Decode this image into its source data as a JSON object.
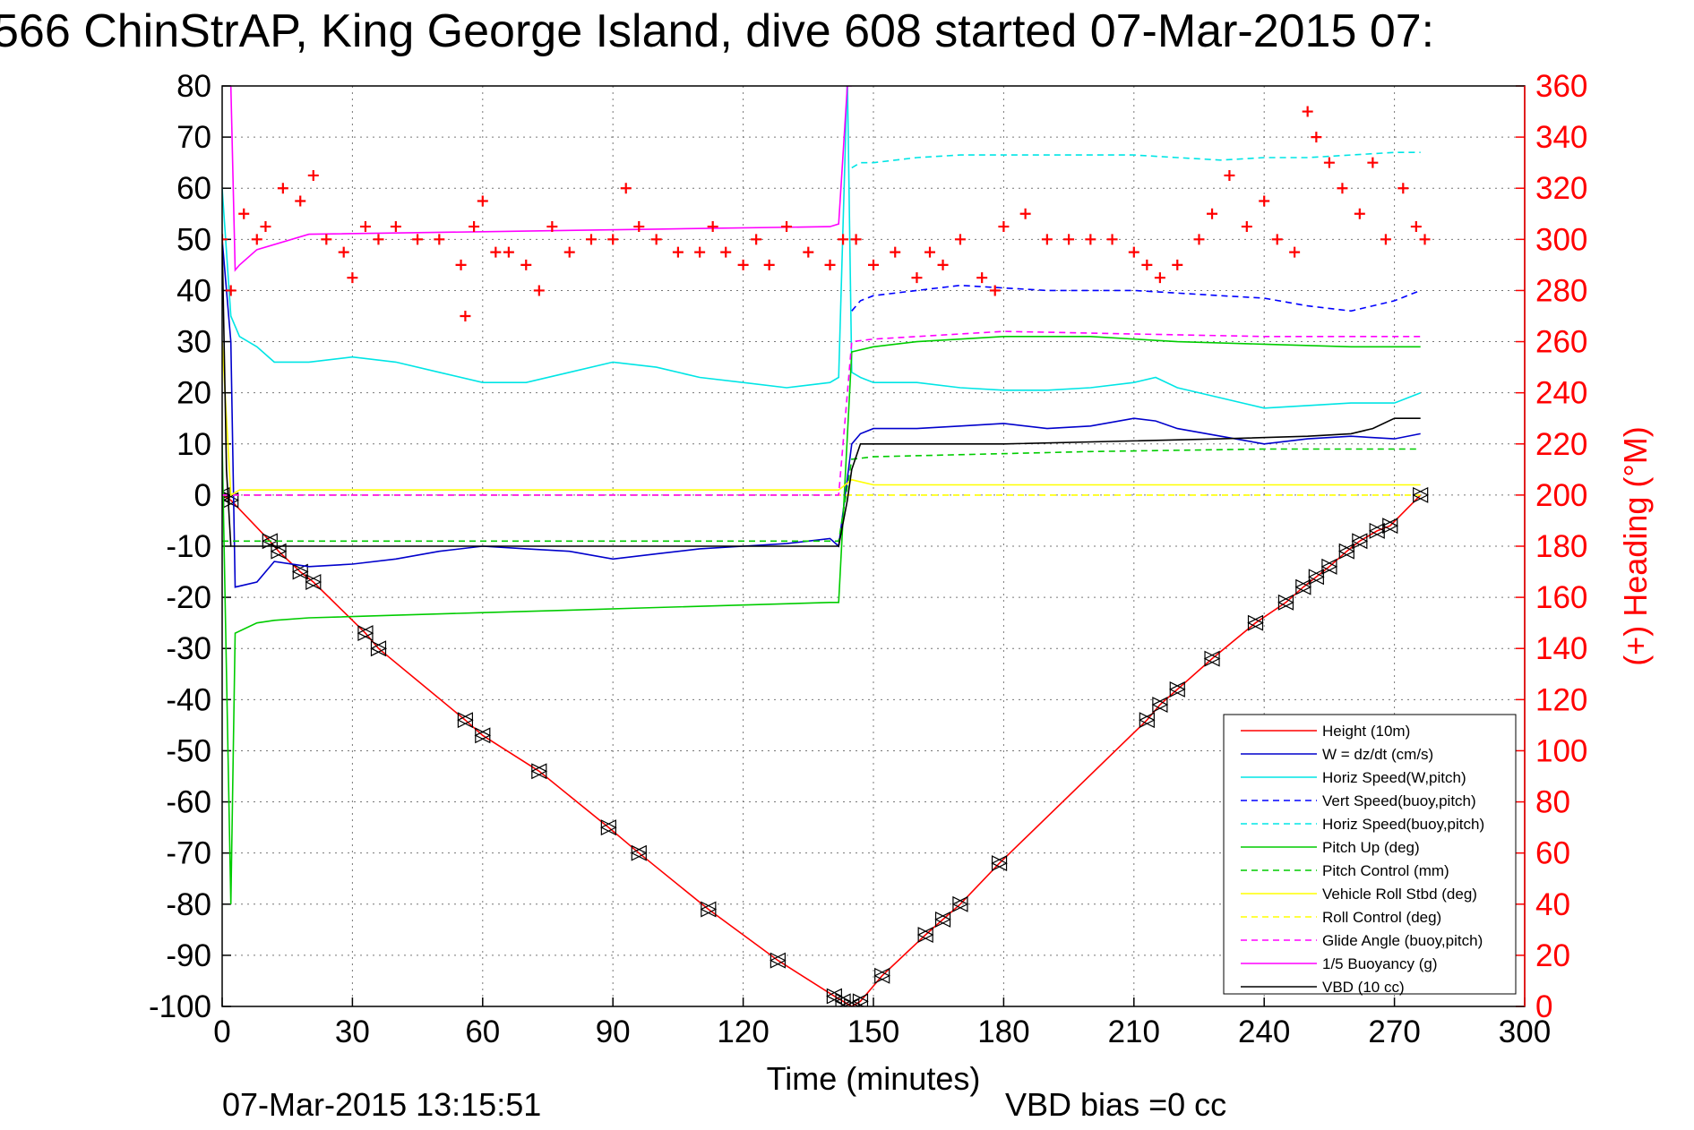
{
  "title": "566 ChinStrAP, King George Island, dive 608 started 07-Mar-2015 07:",
  "footer_date": "07-Mar-2015 13:15:51",
  "footer_vbd": "VBD bias =0 cc",
  "colors": {
    "red": "#ff0000",
    "blue": "#0000cc",
    "cyan": "#00e5e5",
    "green": "#00cc00",
    "yellow": "#ffff00",
    "magenta": "#ff00ff",
    "black": "#000000"
  },
  "chart_data": {
    "type": "line",
    "xlabel": "Time (minutes)",
    "ylabel": "",
    "y2label": "(+) Heading (°M)",
    "xlim": [
      0,
      300
    ],
    "ylim": [
      -100,
      80
    ],
    "y2lim": [
      0,
      360
    ],
    "xticks": [
      0,
      30,
      60,
      90,
      120,
      150,
      180,
      210,
      240,
      270,
      300
    ],
    "yticks": [
      80,
      70,
      60,
      50,
      40,
      30,
      20,
      10,
      0,
      -10,
      -20,
      -30,
      -40,
      -50,
      -60,
      -70,
      -80,
      -90,
      -100
    ],
    "y2ticks": [
      360,
      340,
      320,
      300,
      280,
      260,
      240,
      220,
      200,
      180,
      160,
      140,
      120,
      100,
      80,
      60,
      40,
      20,
      0
    ],
    "grid": true,
    "legend_position": "lower-right",
    "series": [
      {
        "name": "Height (10m)",
        "color": "#ff0000",
        "dash": "solid",
        "marker": "triangle",
        "x": [
          0,
          2,
          11,
          13,
          18,
          21,
          33,
          36,
          56,
          60,
          73,
          89,
          96,
          112,
          128,
          141,
          143,
          145,
          147,
          152,
          162,
          166,
          170,
          179,
          213,
          216,
          220,
          228,
          238,
          245,
          249,
          252,
          255,
          259,
          262,
          266,
          269,
          276
        ],
        "y": [
          0,
          -1,
          -9,
          -11,
          -15,
          -17,
          -27,
          -30,
          -44,
          -47,
          -54,
          -65,
          -70,
          -81,
          -91,
          -98,
          -99,
          -100,
          -99,
          -94,
          -86,
          -83,
          -80,
          -72,
          -44,
          -41,
          -38,
          -32,
          -25,
          -21,
          -18,
          -16,
          -14,
          -11,
          -9,
          -7,
          -6,
          0
        ]
      },
      {
        "name": "W = dz/dt (cm/s)",
        "color": "#0000cc",
        "dash": "solid",
        "marker": "none",
        "x": [
          0,
          2,
          3,
          8,
          12,
          20,
          30,
          40,
          50,
          60,
          70,
          80,
          90,
          100,
          110,
          120,
          130,
          140,
          142,
          145,
          147,
          150,
          160,
          170,
          180,
          190,
          200,
          210,
          215,
          220,
          230,
          240,
          250,
          260,
          270,
          276
        ],
        "y": [
          50,
          30,
          -18,
          -17,
          -13,
          -14,
          -13.5,
          -12.5,
          -11,
          -10,
          -10.5,
          -11,
          -12.5,
          -11.5,
          -10.5,
          -10,
          -9.5,
          -8.5,
          -10,
          10,
          12,
          13,
          13,
          13.5,
          14,
          13,
          13.5,
          15,
          14.5,
          13,
          11.5,
          10,
          11,
          11.5,
          11,
          12
        ]
      },
      {
        "name": "Horiz Speed(W,pitch)",
        "color": "#00e5e5",
        "dash": "solid",
        "marker": "none",
        "x": [
          0,
          2,
          4,
          8,
          12,
          20,
          30,
          40,
          50,
          60,
          70,
          80,
          90,
          100,
          110,
          120,
          130,
          140,
          142,
          144,
          145,
          147,
          150,
          160,
          170,
          180,
          190,
          200,
          210,
          215,
          220,
          230,
          240,
          250,
          260,
          270,
          276
        ],
        "y": [
          60,
          35,
          31,
          29,
          26,
          26,
          27,
          26,
          24,
          22,
          22,
          24,
          26,
          25,
          23,
          22,
          21,
          22,
          23,
          82,
          24,
          23,
          22,
          22,
          21,
          20.5,
          20.5,
          21,
          22,
          23,
          21,
          19,
          17,
          17.5,
          18,
          18,
          20
        ]
      },
      {
        "name": "Vert Speed(buoy,pitch)",
        "color": "#0000ff",
        "dash": "dashed",
        "marker": "none",
        "x": [
          145,
          147,
          150,
          160,
          170,
          180,
          190,
          200,
          210,
          220,
          230,
          240,
          250,
          260,
          270,
          276
        ],
        "y": [
          36,
          38,
          39,
          40,
          41,
          40.5,
          40,
          40,
          40,
          39.5,
          39,
          38.5,
          37,
          36,
          38,
          40
        ]
      },
      {
        "name": "Horiz Speed(buoy,pitch)",
        "color": "#00e5e5",
        "dash": "dashed",
        "marker": "none",
        "x": [
          145,
          147,
          150,
          160,
          170,
          180,
          190,
          200,
          210,
          220,
          230,
          240,
          250,
          260,
          270,
          276
        ],
        "y": [
          64,
          65,
          65,
          66,
          66.5,
          66.5,
          66.5,
          66.5,
          66.5,
          66,
          65.5,
          66,
          66,
          66.5,
          67,
          67
        ]
      },
      {
        "name": "Pitch Up (deg)",
        "color": "#00cc00",
        "dash": "solid",
        "marker": "none",
        "x": [
          0,
          2,
          3,
          8,
          12,
          20,
          40,
          60,
          80,
          100,
          120,
          140,
          142,
          145,
          150,
          160,
          180,
          200,
          220,
          240,
          260,
          276
        ],
        "y": [
          10,
          -80,
          -27,
          -25,
          -24.5,
          -24,
          -23.5,
          -23,
          -22.5,
          -22,
          -21.5,
          -21,
          -21,
          28,
          29,
          30,
          31,
          31,
          30,
          29.5,
          29,
          29
        ]
      },
      {
        "name": "Pitch Control (mm)",
        "color": "#00cc00",
        "dash": "dashed",
        "marker": "none",
        "x": [
          0,
          3,
          20,
          60,
          100,
          140,
          142,
          145,
          150,
          200,
          240,
          276
        ],
        "y": [
          -9,
          -9,
          -9,
          -9,
          -9,
          -9,
          -9,
          7,
          7.5,
          8.5,
          9,
          9
        ]
      },
      {
        "name": "Vehicle Roll Stbd (deg)",
        "color": "#ffff00",
        "dash": "solid",
        "marker": "none",
        "x": [
          0,
          2,
          4,
          10,
          20,
          40,
          60,
          80,
          100,
          120,
          140,
          142,
          145,
          150,
          180,
          210,
          240,
          260,
          276
        ],
        "y": [
          30,
          0,
          1,
          1,
          1,
          1,
          1,
          1,
          1,
          1,
          1,
          1,
          3,
          2,
          2,
          2,
          2,
          2,
          2
        ]
      },
      {
        "name": "Roll Control (deg)",
        "color": "#ffff00",
        "dash": "dashed",
        "marker": "none",
        "x": [
          0,
          3,
          40,
          80,
          120,
          140,
          145,
          180,
          220,
          240,
          276
        ],
        "y": [
          0,
          0,
          0,
          0,
          0,
          0,
          0,
          0,
          0,
          0,
          0
        ]
      },
      {
        "name": "Glide Angle (buoy,pitch)",
        "color": "#ff00ff",
        "dash": "dashed",
        "marker": "none",
        "x": [
          0,
          3,
          40,
          80,
          120,
          140,
          142,
          145,
          150,
          180,
          210,
          240,
          260,
          276
        ],
        "y": [
          0,
          0,
          0,
          0,
          0,
          0,
          0,
          30,
          30.5,
          32,
          31.5,
          31,
          31,
          31
        ]
      },
      {
        "name": "1/5 Buoyancy (g)",
        "color": "#ff00ff",
        "dash": "solid",
        "marker": "none",
        "x": [
          2,
          3,
          4,
          8,
          20,
          60,
          100,
          140,
          142,
          144,
          145
        ],
        "y": [
          80,
          44,
          45,
          48,
          51,
          51.5,
          52,
          52.5,
          53,
          80,
          80
        ]
      },
      {
        "name": "VBD (10 cc)",
        "color": "#000000",
        "dash": "solid",
        "marker": "none",
        "x": [
          0,
          1,
          2,
          3,
          40,
          80,
          120,
          142,
          144,
          145,
          147,
          180,
          230,
          250,
          260,
          265,
          270,
          276
        ],
        "y": [
          50,
          5,
          -10,
          -10,
          -10,
          -10,
          -10,
          -10,
          -1,
          5,
          10,
          10,
          11,
          11.5,
          12,
          13,
          15,
          15
        ]
      },
      {
        "name": "",
        "axis": "right",
        "color": "#ff0000",
        "dash": "none",
        "marker": "plus",
        "x": [
          0,
          2,
          5,
          8,
          10,
          14,
          18,
          21,
          24,
          28,
          30,
          33,
          36,
          40,
          45,
          50,
          55,
          56,
          58,
          60,
          63,
          66,
          70,
          73,
          76,
          80,
          85,
          90,
          93,
          96,
          100,
          105,
          110,
          113,
          116,
          120,
          123,
          126,
          130,
          135,
          140,
          143,
          146,
          150,
          155,
          160,
          163,
          166,
          170,
          175,
          178,
          180,
          185,
          190,
          195,
          200,
          205,
          210,
          213,
          216,
          220,
          225,
          228,
          232,
          236,
          240,
          243,
          247,
          250,
          252,
          255,
          258,
          262,
          265,
          268,
          272,
          275,
          277
        ],
        "y": [
          300,
          280,
          310,
          300,
          305,
          320,
          315,
          325,
          300,
          295,
          285,
          305,
          300,
          305,
          300,
          300,
          290,
          270,
          305,
          315,
          295,
          295,
          290,
          280,
          305,
          295,
          300,
          300,
          320,
          305,
          300,
          295,
          295,
          305,
          295,
          290,
          300,
          290,
          305,
          295,
          290,
          300,
          300,
          290,
          295,
          285,
          295,
          290,
          300,
          285,
          280,
          305,
          310,
          300,
          300,
          300,
          300,
          295,
          290,
          285,
          290,
          300,
          310,
          325,
          305,
          315,
          300,
          295,
          350,
          340,
          330,
          320,
          310,
          330,
          300,
          320,
          305,
          300
        ]
      }
    ]
  }
}
